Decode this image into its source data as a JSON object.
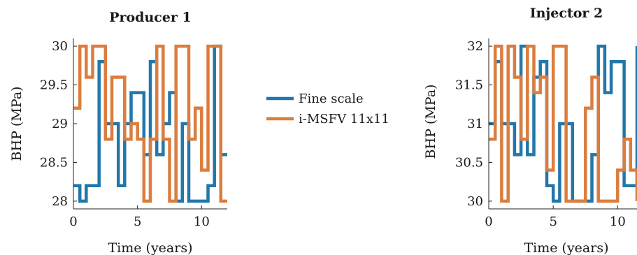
{
  "colors": {
    "fine": "#2277aa",
    "msfv": "#db7d3e",
    "axis": "#222222"
  },
  "legend": {
    "fine": "Fine scale",
    "msfv": "i-MSFV 11x11"
  },
  "chart_data": [
    {
      "type": "line",
      "title": "Producer 1",
      "xlabel": "Time (years)",
      "ylabel": "BHP (MPa)",
      "xlim": [
        0,
        12
      ],
      "ylim": [
        27.9,
        30.1
      ],
      "xticks": [
        "0",
        "5",
        "10"
      ],
      "yticks": [
        "28",
        "28.5",
        "29",
        "29.5",
        "30"
      ],
      "series": [
        {
          "name": "Fine scale",
          "step": true,
          "x": [
            0,
            0.5,
            1,
            2,
            2.5,
            3.5,
            4,
            4.5,
            5.5,
            6,
            6.5,
            7,
            7.5,
            8,
            8.5,
            9,
            10,
            10.5,
            11,
            11.5,
            12
          ],
          "y": [
            28.2,
            28.0,
            28.2,
            29.8,
            29.0,
            28.2,
            29.0,
            29.4,
            28.6,
            29.8,
            28.6,
            29.0,
            29.4,
            28.0,
            29.0,
            28.0,
            28.0,
            28.2,
            30.0,
            28.6,
            28.6
          ]
        },
        {
          "name": "i-MSFV 11x11",
          "step": true,
          "x": [
            0,
            0.5,
            1,
            1.5,
            2.5,
            3,
            4,
            4.5,
            5,
            5.5,
            6,
            6.5,
            7,
            7.5,
            8,
            9,
            9.5,
            10,
            10.5,
            11,
            11.5,
            12
          ],
          "y": [
            29.2,
            30.0,
            29.6,
            30.0,
            28.8,
            29.6,
            28.8,
            29.0,
            28.8,
            28.0,
            28.8,
            30.0,
            28.8,
            28.0,
            30.0,
            28.8,
            29.2,
            28.4,
            30.0,
            30.0,
            28.0,
            28.0
          ]
        }
      ]
    },
    {
      "type": "line",
      "title": "Injector 2",
      "xlabel": "Time (years)",
      "ylabel": "BHP (MPa)",
      "xlim": [
        0,
        11.5
      ],
      "ylim": [
        29.9,
        32.1
      ],
      "xticks": [
        "0",
        "5",
        "10"
      ],
      "yticks": [
        "30",
        "30.5",
        "31",
        "31.5",
        "32"
      ],
      "series": [
        {
          "name": "Fine scale",
          "step": true,
          "x": [
            0,
            0.5,
            1,
            2,
            2.5,
            3,
            3.5,
            4,
            4.5,
            5,
            5.5,
            6,
            6.5,
            7,
            7.5,
            8,
            8.5,
            9,
            9.5,
            10,
            10.5,
            11,
            11.5
          ],
          "y": [
            31.0,
            31.8,
            31.0,
            30.6,
            32.0,
            30.6,
            31.6,
            31.8,
            30.2,
            30.0,
            31.0,
            31.0,
            30.0,
            30.0,
            30.0,
            30.6,
            32.0,
            31.4,
            31.8,
            31.8,
            30.2,
            30.2,
            32.0
          ]
        },
        {
          "name": "i-MSFV 11x11",
          "step": true,
          "x": [
            0,
            0.5,
            1,
            1.5,
            2,
            2.5,
            3,
            3.5,
            4,
            4.5,
            5,
            6,
            6.5,
            7,
            7.5,
            8,
            8.5,
            9,
            10,
            10.5,
            11,
            11.5
          ],
          "y": [
            30.8,
            32.0,
            30.0,
            32.0,
            31.6,
            30.8,
            32.0,
            31.4,
            31.6,
            30.4,
            32.0,
            30.0,
            30.0,
            30.0,
            31.2,
            31.6,
            30.0,
            30.0,
            30.4,
            30.8,
            30.4,
            30.0
          ]
        }
      ]
    }
  ]
}
